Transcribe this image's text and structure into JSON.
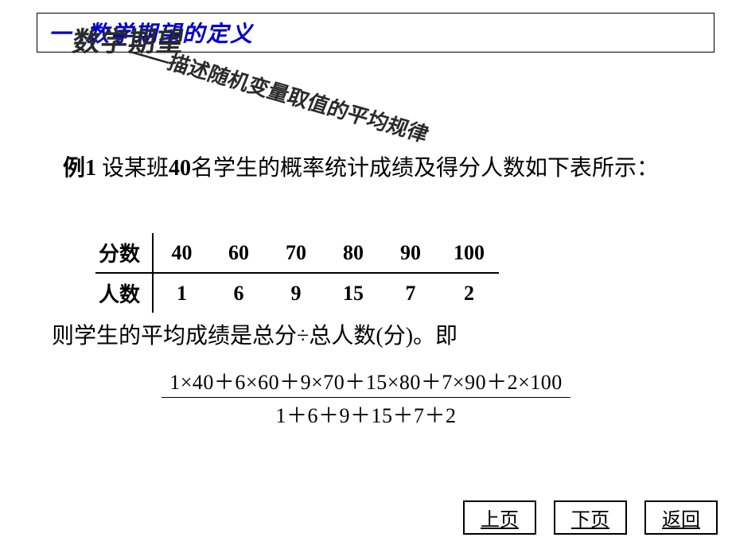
{
  "title": {
    "heading": "一 .数学期望的定义",
    "heading_color": "#0000cc",
    "heading_fontsize": 28
  },
  "wordart": {
    "main": "数学期望",
    "main_fontsize": 34,
    "sub": "——描述随机变量取值的平均规律",
    "sub_fontsize": 26,
    "sub_rotate_deg": 16,
    "color": "#2a2a2a"
  },
  "example": {
    "label": "例1",
    "body_prefix": "  设某班",
    "count": "40",
    "body_suffix": "名学生的概率统计成绩及得分人数如下表所示：",
    "fontsize": 28,
    "color": "#000000"
  },
  "table": {
    "row_labels": [
      "分数",
      "人数"
    ],
    "columns": [
      "40",
      "60",
      "70",
      "80",
      "90",
      "100"
    ],
    "counts": [
      "1",
      "6",
      "9",
      "15",
      "7",
      "2"
    ],
    "fontsize": 26,
    "fontweight": "bold",
    "border_color": "#000000"
  },
  "result": {
    "text": "则学生的平均成绩是总分÷总人数(分)。即",
    "fontsize": 28
  },
  "formula": {
    "numerator": "1×40＋6×60＋9×70＋15×80＋7×90＋2×100",
    "denominator": "1＋6＋9＋15＋7＋2",
    "fontsize": 26,
    "font_family": "Times New Roman"
  },
  "nav": {
    "prev": "上页",
    "next": "下页",
    "back": "返回",
    "fontsize": 24
  },
  "background_color": "#ffffff"
}
